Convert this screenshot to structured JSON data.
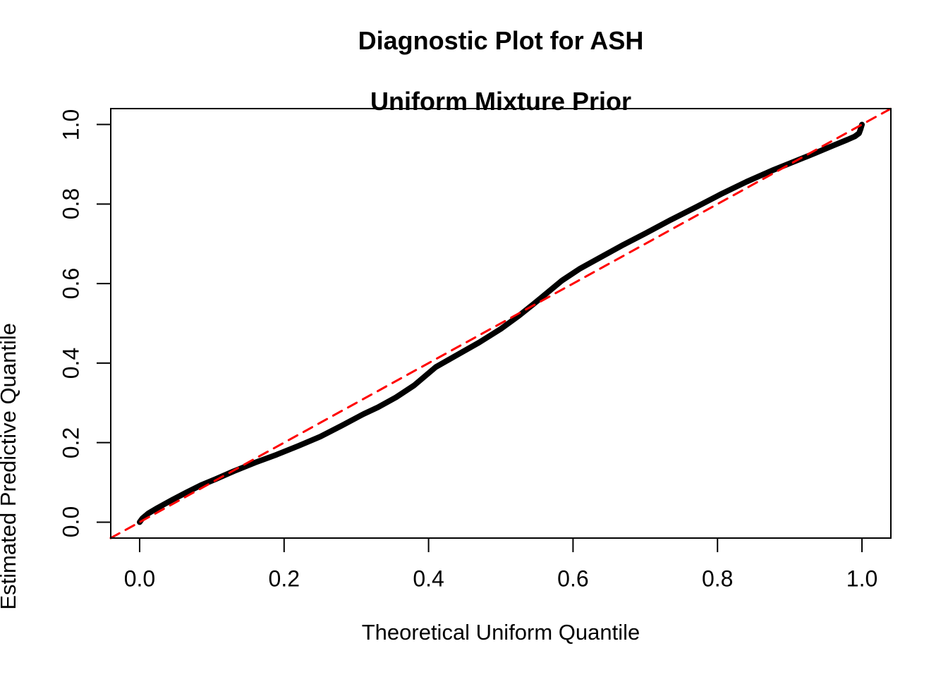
{
  "title": {
    "line1": "Diagnostic Plot for ASH",
    "line2": "Uniform Mixture Prior"
  },
  "chart_data": {
    "type": "line",
    "title": "Diagnostic Plot for ASH\nUniform Mixture Prior",
    "xlabel": "Theoretical Uniform Quantile",
    "ylabel": "Estimated Predictive Quantile",
    "xlim": [
      -0.04,
      1.04
    ],
    "ylim": [
      -0.04,
      1.04
    ],
    "x_ticks": [
      0.0,
      0.2,
      0.4,
      0.6,
      0.8,
      1.0
    ],
    "y_ticks": [
      0.0,
      0.2,
      0.4,
      0.6,
      0.8,
      1.0
    ],
    "x_tick_labels": [
      "0.0",
      "0.2",
      "0.4",
      "0.6",
      "0.8",
      "1.0"
    ],
    "y_tick_labels": [
      "0.0",
      "0.2",
      "0.4",
      "0.6",
      "0.8",
      "1.0"
    ],
    "grid": false,
    "legend": null,
    "series": [
      {
        "name": "estimated-vs-theoretical-quantile-curve",
        "color": "#000000",
        "line_width": 8,
        "dash": null,
        "points": [
          [
            0.0,
            0.0
          ],
          [
            0.004,
            0.01
          ],
          [
            0.012,
            0.022
          ],
          [
            0.025,
            0.036
          ],
          [
            0.045,
            0.056
          ],
          [
            0.065,
            0.075
          ],
          [
            0.085,
            0.093
          ],
          [
            0.105,
            0.108
          ],
          [
            0.13,
            0.128
          ],
          [
            0.16,
            0.15
          ],
          [
            0.19,
            0.17
          ],
          [
            0.22,
            0.192
          ],
          [
            0.25,
            0.215
          ],
          [
            0.28,
            0.243
          ],
          [
            0.31,
            0.272
          ],
          [
            0.33,
            0.289
          ],
          [
            0.355,
            0.314
          ],
          [
            0.38,
            0.344
          ],
          [
            0.41,
            0.39
          ],
          [
            0.44,
            0.421
          ],
          [
            0.47,
            0.452
          ],
          [
            0.5,
            0.486
          ],
          [
            0.525,
            0.519
          ],
          [
            0.545,
            0.548
          ],
          [
            0.565,
            0.578
          ],
          [
            0.585,
            0.608
          ],
          [
            0.61,
            0.638
          ],
          [
            0.64,
            0.668
          ],
          [
            0.67,
            0.698
          ],
          [
            0.7,
            0.726
          ],
          [
            0.735,
            0.76
          ],
          [
            0.77,
            0.792
          ],
          [
            0.805,
            0.825
          ],
          [
            0.84,
            0.856
          ],
          [
            0.875,
            0.884
          ],
          [
            0.905,
            0.906
          ],
          [
            0.935,
            0.928
          ],
          [
            0.96,
            0.947
          ],
          [
            0.98,
            0.962
          ],
          [
            0.99,
            0.97
          ],
          [
            0.996,
            0.978
          ],
          [
            0.998,
            0.988
          ],
          [
            1.0,
            1.0
          ]
        ]
      },
      {
        "name": "reference-diagonal",
        "color": "#FF0000",
        "line_width": 3,
        "dash": [
          14,
          10
        ],
        "points": [
          [
            -0.04,
            -0.04
          ],
          [
            1.04,
            1.04
          ]
        ]
      }
    ]
  },
  "colors": {
    "curve": "#000000",
    "reference_line": "#FF0000",
    "axis": "#000000",
    "background": "#FFFFFF"
  }
}
